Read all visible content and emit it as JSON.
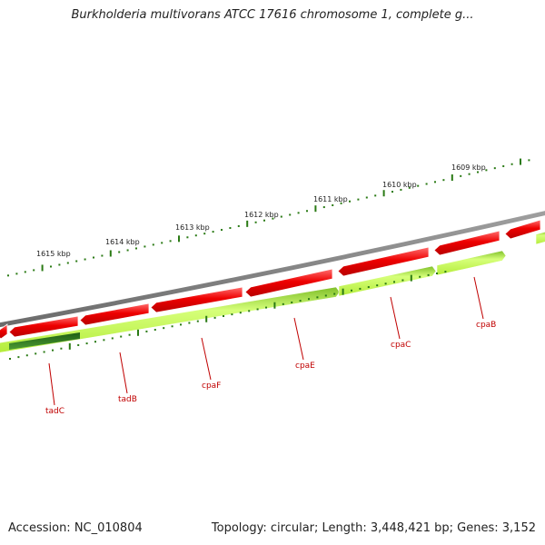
{
  "title": "Burkholderia multivorans ATCC 17616 chromosome 1, complete g...",
  "footer": {
    "accession": "Accession: NC_010804",
    "summary": "Topology: circular; Length: 3,448,421 bp; Genes: 3,152"
  },
  "scale_labels": [
    "1615 kbp",
    "1614 kbp",
    "1613 kbp",
    "1612 kbp",
    "1611 kbp",
    "1610 kbp",
    "1609 kbp"
  ],
  "gene_labels": [
    "tadC",
    "tadB",
    "cpaF",
    "cpaE",
    "cpaC",
    "cpaB"
  ],
  "colors": {
    "gene_red": "#e80000",
    "gene_red_light": "#ff6a6a",
    "cds_green": "#b9f23a",
    "cds_green_light": "#e4ff9a",
    "cds_dark": "#2e7d1f",
    "backbone": "#8a8a8a",
    "tick": "#2a7a14",
    "label_red": "#c00000"
  }
}
